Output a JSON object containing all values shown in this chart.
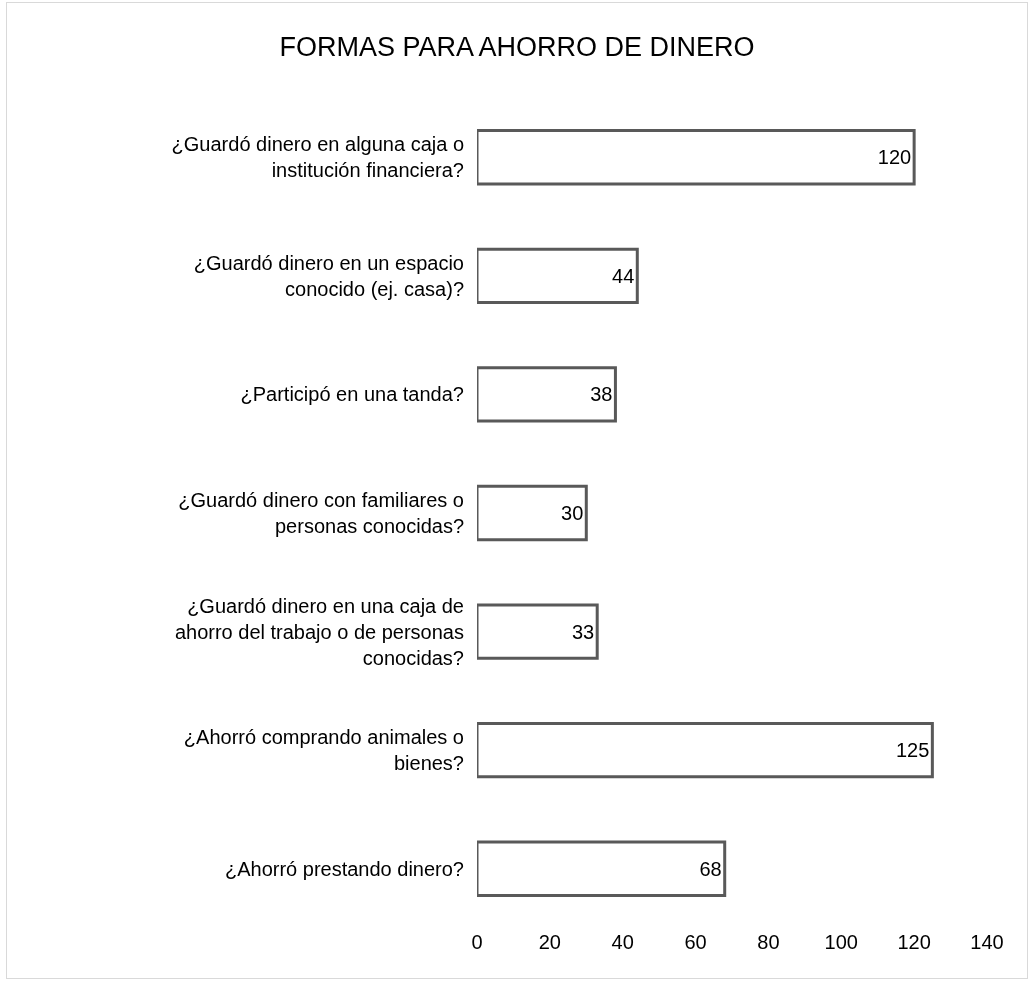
{
  "chart_data": {
    "type": "bar",
    "orientation": "horizontal",
    "title": "FORMAS PARA AHORRO DE DINERO",
    "categories": [
      "¿Guardó dinero en alguna caja o institución financiera?",
      "¿Guardó dinero en un espacio conocido (ej. casa)?",
      "¿Participó en una tanda?",
      "¿Guardó dinero con familiares o personas conocidas?",
      "¿Guardó dinero en una caja de ahorro del trabajo o de personas conocidas?",
      "¿Ahorró comprando animales o bienes?",
      "¿Ahorró prestando dinero?"
    ],
    "values": [
      120,
      44,
      38,
      30,
      33,
      125,
      68
    ],
    "color": "#595959",
    "data_labels": true,
    "grid": false,
    "xlim": [
      0,
      140
    ],
    "xticks": [
      0,
      20,
      40,
      60,
      80,
      100,
      120,
      140
    ]
  }
}
